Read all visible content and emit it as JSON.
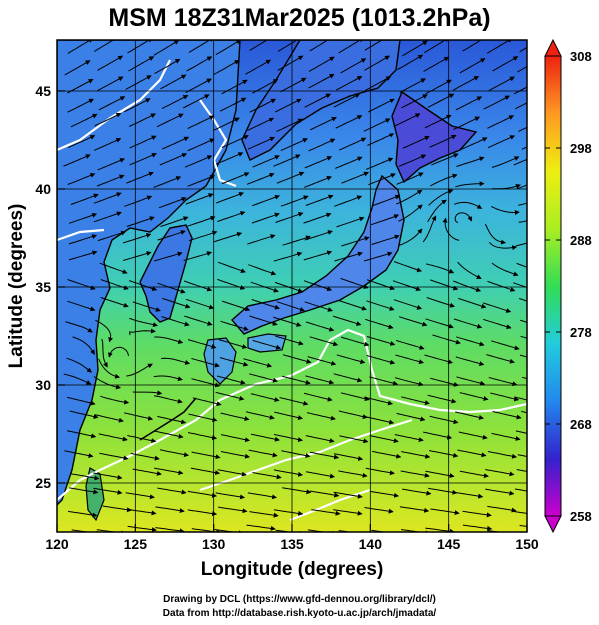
{
  "title": "MSM 18Z31Mar2025 (1013.2hPa)",
  "x_axis": {
    "label": "Longitude (degrees)",
    "range": [
      120,
      150
    ],
    "ticks": [
      120,
      125,
      130,
      135,
      140,
      145,
      150
    ]
  },
  "y_axis": {
    "label": "Latitude  (degrees)",
    "range": [
      22.5,
      47.6
    ],
    "ticks": [
      25,
      30,
      35,
      40,
      45
    ]
  },
  "colorbar": {
    "range": [
      258,
      308
    ],
    "ticks": [
      258,
      268,
      278,
      288,
      298,
      308
    ],
    "colors": [
      "#cc00cc",
      "#3322cc",
      "#2288ee",
      "#22ccdd",
      "#33dd55",
      "#aaee22",
      "#eeee11",
      "#ff9922",
      "#ee2211"
    ]
  },
  "colors": {
    "land_outline": "#000000",
    "snow": "#ffffff",
    "contour": "#ffffff",
    "streamline": "#000000"
  },
  "credits": {
    "line1": "Drawing by DCL (https://www.gfd-dennou.org/library/dcl/)",
    "line2": "Data from http://database.rish.kyoto-u.ac.jp/arch/jmadata/"
  }
}
